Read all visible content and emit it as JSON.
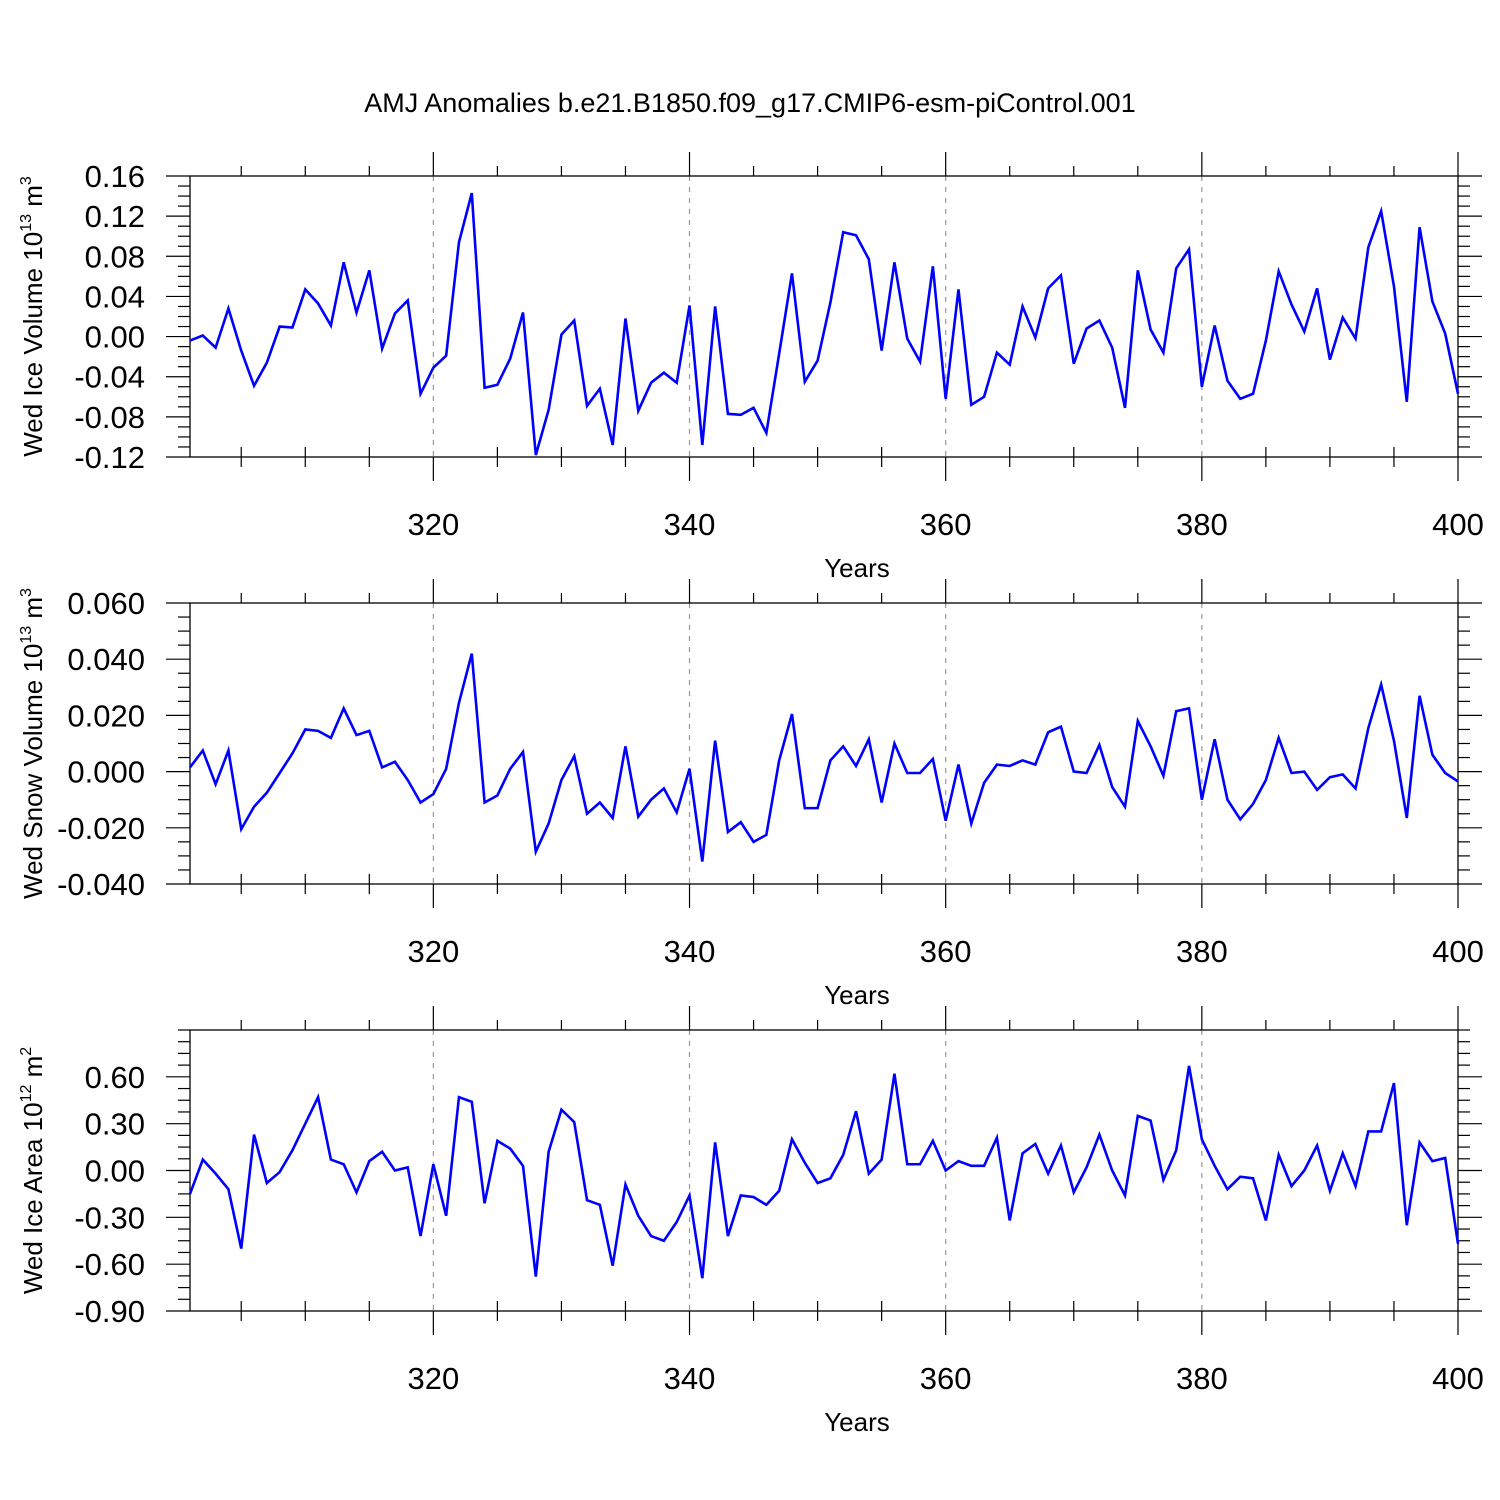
{
  "title": "AMJ Anomalies b.e21.B1850.f09_g17.CMIP6-esm-piControl.001",
  "colors": {
    "line": "#0000ff",
    "axis": "#000000",
    "grid": "#999999",
    "background": "#ffffff"
  },
  "chart_data": [
    {
      "type": "line",
      "ylabel": "Wed Ice Volume 10",
      "ylabel_exp": "13",
      "ylabel_unit": "m",
      "ylabel_unit_exp": "3",
      "xlabel": "Years",
      "xlim": [
        301,
        400
      ],
      "ylim": [
        -0.12,
        0.16
      ],
      "yticks": [
        -0.12,
        -0.08,
        -0.04,
        0.0,
        0.04,
        0.08,
        0.12,
        0.16
      ],
      "ytick_labels": [
        "-0.12",
        "-0.08",
        "-0.04",
        "0.00",
        "0.04",
        "0.08",
        "0.12",
        "0.16"
      ],
      "xticks": [
        320,
        340,
        360,
        380,
        400
      ],
      "xtick_labels": [
        "320",
        "340",
        "360",
        "380",
        "400"
      ],
      "x_start": 301,
      "series": [
        {
          "name": "Wed Ice Volume",
          "values": [
            -0.004,
            0.001,
            -0.011,
            0.028,
            -0.014,
            -0.049,
            -0.026,
            0.01,
            0.009,
            0.047,
            0.033,
            0.011,
            0.074,
            0.024,
            0.066,
            -0.012,
            0.023,
            0.036,
            -0.057,
            -0.031,
            -0.019,
            0.094,
            0.143,
            -0.051,
            -0.048,
            -0.022,
            0.024,
            -0.118,
            -0.073,
            0.002,
            0.016,
            -0.069,
            -0.052,
            -0.108,
            0.018,
            -0.074,
            -0.046,
            -0.036,
            -0.046,
            0.031,
            -0.108,
            0.03,
            -0.077,
            -0.078,
            -0.071,
            -0.096,
            -0.017,
            0.063,
            -0.045,
            -0.024,
            0.034,
            0.104,
            0.101,
            0.077,
            -0.014,
            0.074,
            -0.002,
            -0.025,
            0.07,
            -0.062,
            0.047,
            -0.068,
            -0.06,
            -0.016,
            -0.028,
            0.03,
            -0.001,
            0.048,
            0.061,
            -0.027,
            0.008,
            0.016,
            -0.011,
            -0.071,
            0.066,
            0.007,
            -0.016,
            0.068,
            0.087,
            -0.05,
            0.011,
            -0.044,
            -0.062,
            -0.057,
            -0.004,
            0.065,
            0.032,
            0.005,
            0.048,
            -0.023,
            0.019,
            -0.002,
            0.089,
            0.125,
            0.05,
            -0.065,
            0.109,
            0.035,
            0.003,
            -0.057
          ]
        }
      ]
    },
    {
      "type": "line",
      "ylabel": "Wed Snow Volume 10",
      "ylabel_exp": "13",
      "ylabel_unit": "m",
      "ylabel_unit_exp": "3",
      "xlabel": "Years",
      "xlim": [
        301,
        400
      ],
      "ylim": [
        -0.04,
        0.06
      ],
      "yticks": [
        -0.04,
        -0.02,
        0.0,
        0.02,
        0.04,
        0.06
      ],
      "ytick_labels": [
        "-0.040",
        "-0.020",
        "0.000",
        "0.020",
        "0.040",
        "0.060"
      ],
      "xticks": [
        320,
        340,
        360,
        380,
        400
      ],
      "xtick_labels": [
        "320",
        "340",
        "360",
        "380",
        "400"
      ],
      "x_start": 301,
      "series": [
        {
          "name": "Wed Snow Volume",
          "values": [
            0.0015,
            0.0075,
            -0.0045,
            0.0075,
            -0.0205,
            -0.0125,
            -0.0075,
            -0.0005,
            0.0065,
            0.015,
            0.0145,
            0.012,
            0.0225,
            0.013,
            0.0145,
            0.0015,
            0.0035,
            -0.003,
            -0.011,
            -0.008,
            0.001,
            0.0245,
            0.042,
            -0.011,
            -0.0085,
            0.001,
            0.007,
            -0.0285,
            -0.0185,
            -0.003,
            0.0055,
            -0.015,
            -0.011,
            -0.0165,
            0.009,
            -0.016,
            -0.01,
            -0.006,
            -0.0145,
            0.001,
            -0.032,
            0.011,
            -0.0215,
            -0.018,
            -0.025,
            -0.0225,
            0.004,
            0.0205,
            -0.013,
            -0.013,
            0.004,
            0.009,
            0.002,
            0.0115,
            -0.011,
            0.01,
            -0.0005,
            -0.0005,
            0.0045,
            -0.0175,
            0.0025,
            -0.0185,
            -0.004,
            0.0025,
            0.002,
            0.004,
            0.0025,
            0.014,
            0.016,
            0.0,
            -0.0005,
            0.0095,
            -0.0055,
            -0.0125,
            0.018,
            0.009,
            -0.0015,
            0.0215,
            0.0225,
            -0.01,
            0.0115,
            -0.01,
            -0.017,
            -0.0115,
            -0.003,
            0.012,
            -0.0005,
            0.0,
            -0.0065,
            -0.002,
            -0.001,
            -0.006,
            0.0155,
            0.031,
            0.011,
            -0.0165,
            0.027,
            0.006,
            -0.0005,
            -0.0035
          ]
        }
      ]
    },
    {
      "type": "line",
      "ylabel": "Wed Ice Area 10",
      "ylabel_exp": "12",
      "ylabel_unit": "m",
      "ylabel_unit_exp": "2",
      "xlabel": "Years",
      "xlim": [
        301,
        400
      ],
      "ylim": [
        -0.9,
        0.9
      ],
      "yticks": [
        -0.9,
        -0.6,
        -0.3,
        0.0,
        0.3,
        0.6
      ],
      "ytick_labels": [
        "-0.90",
        "-0.60",
        "-0.30",
        "0.00",
        "0.30",
        "0.60"
      ],
      "xticks": [
        320,
        340,
        360,
        380,
        400
      ],
      "xtick_labels": [
        "320",
        "340",
        "360",
        "380",
        "400"
      ],
      "x_start": 301,
      "series": [
        {
          "name": "Wed Ice Area",
          "values": [
            -0.15,
            0.07,
            -0.02,
            -0.12,
            -0.5,
            0.23,
            -0.08,
            -0.01,
            0.13,
            0.3,
            0.47,
            0.07,
            0.04,
            -0.14,
            0.06,
            0.12,
            0.0,
            0.02,
            -0.42,
            0.04,
            -0.29,
            0.47,
            0.44,
            -0.21,
            0.19,
            0.14,
            0.03,
            -0.68,
            0.12,
            0.39,
            0.31,
            -0.19,
            -0.22,
            -0.61,
            -0.09,
            -0.29,
            -0.42,
            -0.45,
            -0.33,
            -0.16,
            -0.69,
            0.18,
            -0.42,
            -0.16,
            -0.17,
            -0.22,
            -0.13,
            0.2,
            0.05,
            -0.08,
            -0.05,
            0.1,
            0.38,
            -0.02,
            0.07,
            0.62,
            0.04,
            0.04,
            0.19,
            0.0,
            0.06,
            0.03,
            0.03,
            0.21,
            -0.32,
            0.11,
            0.17,
            -0.02,
            0.16,
            -0.14,
            0.02,
            0.23,
            0.0,
            -0.16,
            0.35,
            0.32,
            -0.06,
            0.13,
            0.67,
            0.2,
            0.03,
            -0.12,
            -0.04,
            -0.05,
            -0.32,
            0.1,
            -0.1,
            0.0,
            0.16,
            -0.13,
            0.11,
            -0.1,
            0.25,
            0.25,
            0.56,
            -0.35,
            0.18,
            0.06,
            0.08,
            -0.47
          ]
        }
      ]
    }
  ]
}
